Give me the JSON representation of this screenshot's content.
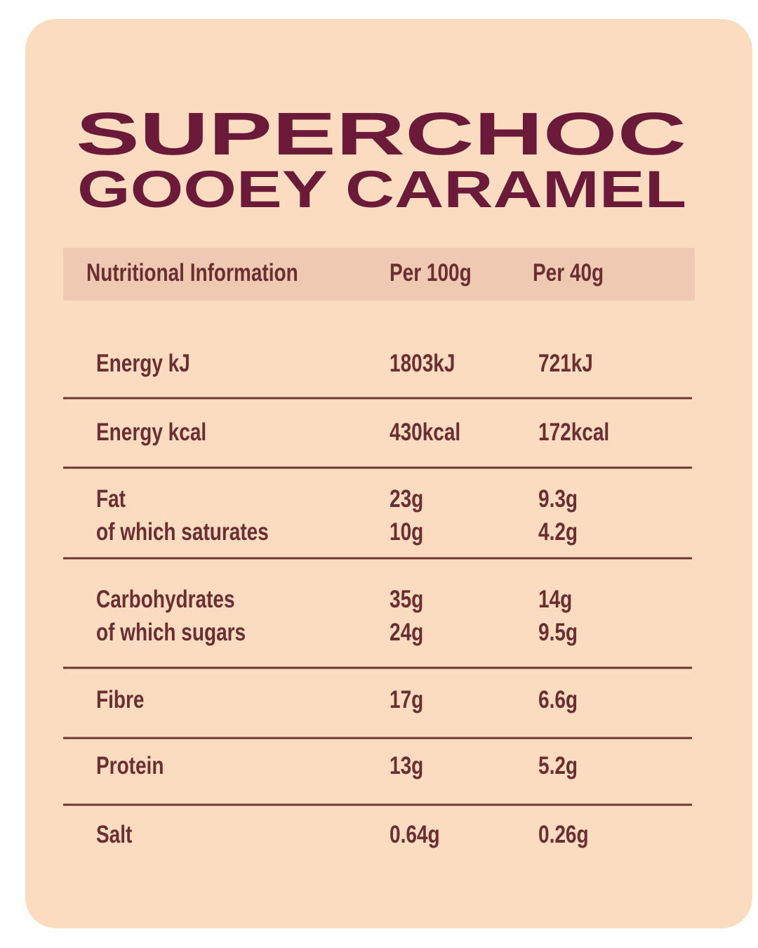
{
  "title": [
    "SUPERCHOC",
    "GOOEY CARAMEL"
  ],
  "table": {
    "header": [
      "Nutritional Information",
      "Per 100g",
      "Per 40g"
    ],
    "groups": [
      [
        [
          "Energy kJ",
          "1803kJ",
          "721kJ"
        ]
      ],
      [
        [
          "Energy kcal",
          "430kcal",
          "172kcal"
        ]
      ],
      [
        [
          "Fat",
          "23g",
          "9.3g"
        ],
        [
          "of which saturates",
          "10g",
          "4.2g"
        ]
      ],
      [
        [
          "Carbohydrates",
          "35g",
          "14g"
        ],
        [
          "of which sugars",
          "24g",
          "9.5g"
        ]
      ],
      [
        [
          "Fibre",
          "17g",
          "6.6g"
        ]
      ],
      [
        [
          "Protein",
          "13g",
          "5.2g"
        ]
      ],
      [
        [
          "Salt",
          "0.64g",
          "0.26g"
        ]
      ]
    ]
  }
}
